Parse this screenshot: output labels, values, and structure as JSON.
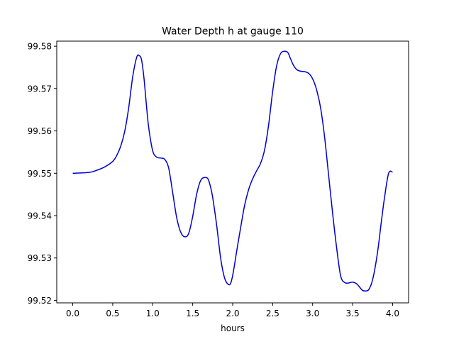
{
  "chart_data": {
    "type": "line",
    "title": "Water Depth h at gauge 110",
    "xlabel": "hours",
    "ylabel": "",
    "xlim": [
      -0.2,
      4.2
    ],
    "ylim": [
      99.5194,
      99.5812
    ],
    "xticks": [
      0.0,
      0.5,
      1.0,
      1.5,
      2.0,
      2.5,
      3.0,
      3.5,
      4.0
    ],
    "xtick_labels": [
      "0.0",
      "0.5",
      "1.0",
      "1.5",
      "2.0",
      "2.5",
      "3.0",
      "3.5",
      "4.0"
    ],
    "yticks": [
      99.52,
      99.53,
      99.54,
      99.55,
      99.56,
      99.57,
      99.58
    ],
    "ytick_labels": [
      "99.52",
      "99.53",
      "99.54",
      "99.55",
      "99.56",
      "99.57",
      "99.58"
    ],
    "grid": false,
    "legend": "none",
    "series": [
      {
        "color": "#0000cc",
        "x": [
          0.0,
          0.2,
          0.3,
          0.4,
          0.5,
          0.55,
          0.6,
          0.65,
          0.7,
          0.75,
          0.8,
          0.83,
          0.86,
          0.89,
          0.92,
          0.95,
          1.0,
          1.05,
          1.1,
          1.15,
          1.2,
          1.25,
          1.3,
          1.35,
          1.4,
          1.45,
          1.5,
          1.55,
          1.6,
          1.65,
          1.69,
          1.72,
          1.75,
          1.8,
          1.85,
          1.9,
          1.95,
          1.98,
          2.01,
          2.05,
          2.1,
          2.15,
          2.2,
          2.25,
          2.3,
          2.35,
          2.4,
          2.45,
          2.5,
          2.55,
          2.6,
          2.65,
          2.69,
          2.72,
          2.76,
          2.8,
          2.85,
          2.9,
          2.95,
          3.0,
          3.05,
          3.1,
          3.15,
          3.2,
          3.25,
          3.3,
          3.35,
          3.4,
          3.45,
          3.5,
          3.55,
          3.58,
          3.62,
          3.66,
          3.7,
          3.74,
          3.78,
          3.82,
          3.86,
          3.9,
          3.95,
          4.0
        ],
        "y": [
          99.55,
          99.5502,
          99.5507,
          99.5515,
          99.5528,
          99.5542,
          99.5564,
          99.5599,
          99.5655,
          99.5728,
          99.5774,
          99.5778,
          99.5768,
          99.5726,
          99.5664,
          99.5608,
          99.5553,
          99.5538,
          99.5536,
          99.5533,
          99.5512,
          99.5454,
          99.5395,
          99.5361,
          99.535,
          99.5358,
          99.5398,
          99.5451,
          99.5483,
          99.549,
          99.5487,
          99.547,
          99.5443,
          99.5377,
          99.5299,
          99.5252,
          99.5237,
          99.5243,
          99.5269,
          99.5316,
          99.5372,
          99.5425,
          99.5462,
          99.5487,
          99.5506,
          99.5524,
          99.5556,
          99.5615,
          99.5693,
          99.5754,
          99.5783,
          99.5788,
          99.5785,
          99.5772,
          99.5755,
          99.5745,
          99.5741,
          99.574,
          99.5736,
          99.5723,
          99.5697,
          99.5654,
          99.5585,
          99.5495,
          99.5405,
          99.5324,
          99.5258,
          99.5242,
          99.5241,
          99.5243,
          99.5239,
          99.5233,
          99.5224,
          99.5222,
          99.5225,
          99.5242,
          99.5276,
          99.5325,
          99.5387,
          99.5444,
          99.55,
          99.5503
        ]
      }
    ]
  }
}
